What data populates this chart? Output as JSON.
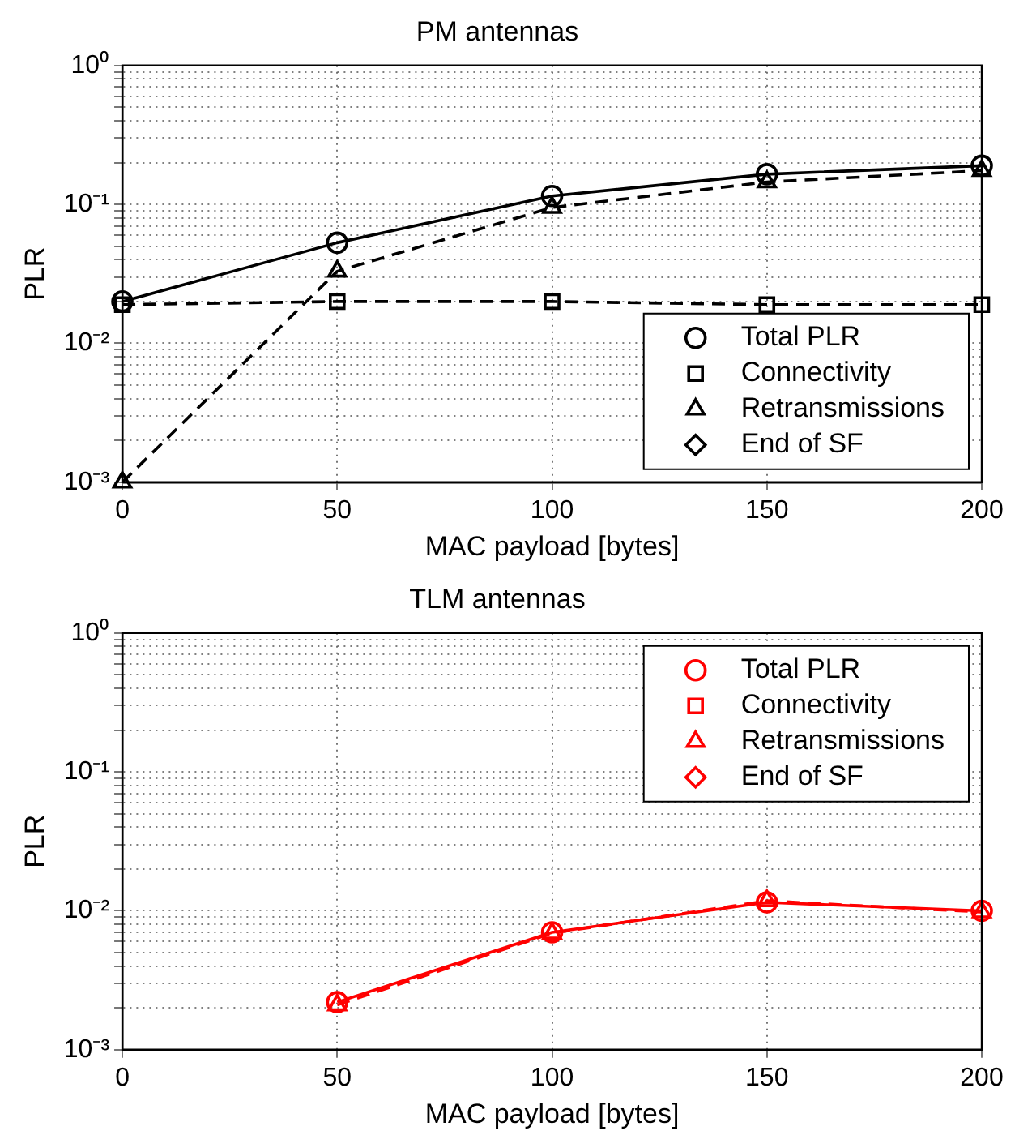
{
  "chart_data": [
    {
      "type": "line",
      "title": "PM antennas",
      "xlabel": "MAC payload [bytes]",
      "ylabel": "PLR",
      "x": [
        0,
        50,
        100,
        150,
        200
      ],
      "log": "y",
      "grid": true,
      "legend": "bottom right",
      "xlim": [
        0,
        200
      ],
      "xticks": [
        0,
        50,
        100,
        150,
        200
      ],
      "ylim": [
        0.001,
        1
      ],
      "yticks": [
        {
          "value": 0.001,
          "label": "10⁻³"
        },
        {
          "value": 0.01,
          "label": "10⁻²"
        },
        {
          "value": 0.1,
          "label": "10⁻¹"
        },
        {
          "value": 1,
          "label": "10⁰"
        }
      ],
      "series": [
        {
          "name": "Total PLR",
          "color": "#000000",
          "marker": "circle",
          "line_style": "solid",
          "values": [
            0.02,
            0.053,
            0.115,
            0.165,
            0.19
          ]
        },
        {
          "name": "Connectivity",
          "color": "#000000",
          "marker": "square",
          "line_style": "dashed",
          "values": [
            0.019,
            0.02,
            0.02,
            0.019,
            0.019
          ]
        },
        {
          "name": "Retransmissions",
          "color": "#000000",
          "marker": "triangle",
          "line_style": "dashed",
          "values": [
            0.001,
            0.033,
            0.095,
            0.145,
            0.175
          ]
        },
        {
          "name": "End of SF",
          "color": "#000000",
          "marker": "diamond",
          "line_style": "solid",
          "values": [
            null,
            null,
            null,
            null,
            null
          ]
        }
      ]
    },
    {
      "type": "line",
      "title": "TLM antennas",
      "xlabel": "MAC payload [bytes]",
      "ylabel": "PLR",
      "x": [
        50,
        100,
        150,
        200
      ],
      "log": "y",
      "grid": true,
      "legend": "top right",
      "xlim": [
        0,
        200
      ],
      "xticks": [
        0,
        50,
        100,
        150,
        200
      ],
      "ylim": [
        0.001,
        1
      ],
      "yticks": [
        {
          "value": 0.001,
          "label": "10⁻³"
        },
        {
          "value": 0.01,
          "label": "10⁻²"
        },
        {
          "value": 0.1,
          "label": "10⁻¹"
        },
        {
          "value": 1,
          "label": "10⁰"
        }
      ],
      "series": [
        {
          "name": "Total PLR",
          "color": "#ff0000",
          "marker": "circle",
          "line_style": "solid",
          "values": [
            0.0022,
            0.007,
            0.0115,
            0.01
          ]
        },
        {
          "name": "Connectivity",
          "color": "#ff0000",
          "marker": "square",
          "line_style": "dashed",
          "values": [
            null,
            null,
            null,
            null
          ]
        },
        {
          "name": "Retransmissions",
          "color": "#ff0000",
          "marker": "triangle",
          "line_style": "dashed",
          "values": [
            0.0021,
            0.0069,
            0.0118,
            0.0098
          ]
        },
        {
          "name": "End of SF",
          "color": "#ff0000",
          "marker": "diamond",
          "line_style": "solid",
          "values": [
            null,
            null,
            null,
            null
          ]
        }
      ]
    }
  ]
}
